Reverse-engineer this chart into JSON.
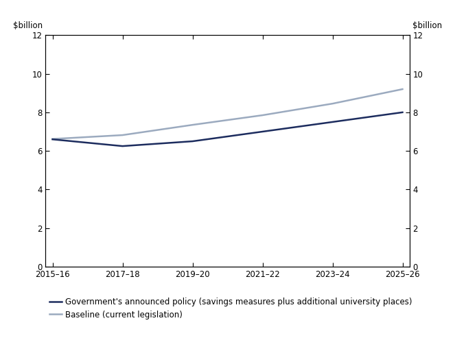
{
  "x_labels": [
    "2015–16",
    "2017–18",
    "2019–20",
    "2021–22",
    "2023–24",
    "2025–26"
  ],
  "x_values": [
    0,
    2,
    4,
    6,
    8,
    10
  ],
  "policy_y": [
    6.6,
    6.25,
    6.5,
    7.0,
    7.5,
    8.0
  ],
  "baseline_y": [
    6.62,
    6.82,
    7.35,
    7.85,
    8.45,
    9.2
  ],
  "policy_color": "#1c2c5e",
  "baseline_color": "#9baabf",
  "ylim": [
    0,
    12
  ],
  "ylabel_left": "$billion",
  "ylabel_right": "$billion",
  "legend_policy": "Government's announced policy (savings measures plus additional university places)",
  "legend_baseline": "Baseline (current legislation)",
  "policy_linewidth": 1.8,
  "baseline_linewidth": 1.8,
  "background_color": "#ffffff",
  "tick_fontsize": 8.5,
  "label_fontsize": 8.5,
  "legend_fontsize": 8.5
}
